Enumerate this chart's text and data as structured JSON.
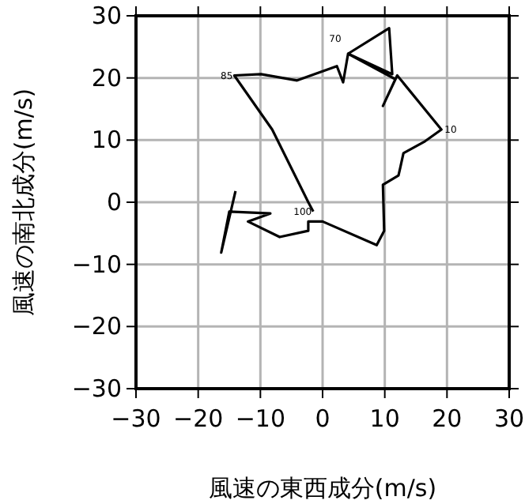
{
  "chart_data": {
    "type": "line",
    "xlabel": "風速の東西成分(m/s)",
    "ylabel": "風速の南北成分(m/s)",
    "xlim": [
      -30,
      30
    ],
    "ylim": [
      -30,
      30
    ],
    "xticks": [
      -30,
      -20,
      -10,
      0,
      10,
      20,
      30
    ],
    "yticks": [
      -30,
      -20,
      -10,
      0,
      10,
      20,
      30
    ],
    "grid": true,
    "marker": "none",
    "line_style": "solid",
    "series": [
      {
        "color": "#000000",
        "x": [
          -14.0,
          -16.3,
          -15.0,
          -8.4,
          -12.0,
          -6.9,
          -2.3,
          -2.3,
          0,
          8.7,
          9.9,
          9.7,
          12.2,
          12.5,
          13.0,
          16.3,
          19.1,
          12.0,
          9.7,
          11.7,
          4.1,
          10.7,
          11.2,
          4.1,
          3.3,
          2.3,
          -4.1,
          -9.9,
          -14.2,
          -8.1,
          -2.3,
          -1.5
        ],
        "values": [
          1.8,
          -8.1,
          -1.5,
          -1.8,
          -3.1,
          -5.6,
          -4.6,
          -3.1,
          -3.1,
          -6.9,
          -4.6,
          2.8,
          4.3,
          5.6,
          7.9,
          9.7,
          11.7,
          20.4,
          15.5,
          19.8,
          23.9,
          28.0,
          20.6,
          23.9,
          19.3,
          21.9,
          19.6,
          20.6,
          20.4,
          11.7,
          0,
          -1.5
        ]
      }
    ],
    "annotations": [
      "70",
      {
        "text": "85",
        "x": -14.2,
        "y": 20.4
      },
      {
        "text": "100",
        "x": -1.5,
        "y": -1.5
      },
      {
        "text": "10",
        "x": 19.1,
        "y": 11.7
      }
    ]
  }
}
